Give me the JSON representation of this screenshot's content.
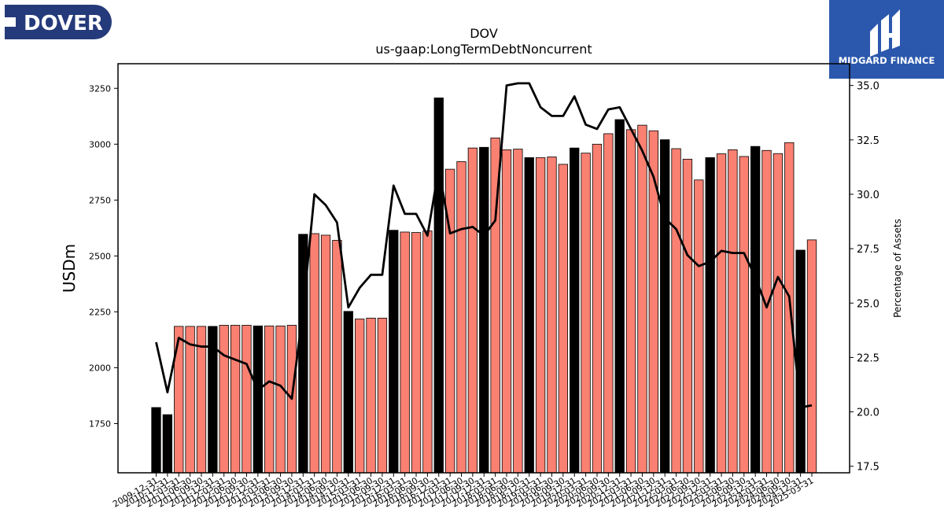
{
  "brand": {
    "left_logo_text": "DOVER",
    "right_logo_text": "MIDGARD FINANCE",
    "left_logo_color": "#253a7a",
    "right_logo_color": "#2b58ad"
  },
  "chart_data": {
    "type": "bar",
    "title": "DOV",
    "subtitle": "us-gaap:LongTermDebtNoncurrent",
    "ylabel": "USDm",
    "y2label": "Percentage of Assets",
    "ylim": [
      1530,
      3360
    ],
    "y2lim": [
      17.2,
      36.0
    ],
    "yticks": [
      1750,
      2000,
      2250,
      2500,
      2750,
      3000,
      3250
    ],
    "y2ticks": [
      17.5,
      20.0,
      22.5,
      25.0,
      27.5,
      30.0,
      32.5,
      35.0
    ],
    "y2tick_labels": [
      "17.5",
      "20.0",
      "22.5",
      "25.0",
      "27.5",
      "30.0",
      "32.5",
      "35.0"
    ],
    "colors": {
      "annual_bar": "#000000",
      "quarterly_bar": "#fa8072",
      "line": "#000000"
    },
    "categories": [
      "2009-12-31",
      "2010-12-31",
      "2011-03-31",
      "2011-06-30",
      "2011-09-30",
      "2011-12-31",
      "2012-03-31",
      "2012-06-30",
      "2012-09-30",
      "2012-12-31",
      "2013-03-31",
      "2013-06-30",
      "2013-09-30",
      "2013-12-31",
      "2014-03-31",
      "2014-06-30",
      "2014-09-30",
      "2014-12-31",
      "2015-03-31",
      "2015-06-30",
      "2015-09-30",
      "2015-12-31",
      "2016-03-31",
      "2016-06-30",
      "2016-09-30",
      "2016-12-31",
      "2017-03-31",
      "2017-06-30",
      "2017-09-30",
      "2017-12-31",
      "2018-03-31",
      "2018-06-30",
      "2018-09-30",
      "2018-12-31",
      "2019-03-31",
      "2019-06-30",
      "2019-09-30",
      "2019-12-31",
      "2020-03-31",
      "2020-06-30",
      "2020-09-30",
      "2020-12-31",
      "2021-03-31",
      "2021-06-30",
      "2021-09-30",
      "2021-12-31",
      "2022-03-31",
      "2022-06-30",
      "2022-09-30",
      "2022-12-31",
      "2023-03-31",
      "2023-06-30",
      "2023-09-30",
      "2023-12-31",
      "2024-03-31",
      "2024-06-30",
      "2024-09-30",
      "2024-12-31",
      "2025-03-31"
    ],
    "annual": [
      true,
      true,
      false,
      false,
      false,
      true,
      false,
      false,
      false,
      true,
      false,
      false,
      false,
      true,
      false,
      false,
      false,
      true,
      false,
      false,
      false,
      true,
      false,
      false,
      false,
      true,
      false,
      false,
      false,
      true,
      false,
      false,
      false,
      true,
      false,
      false,
      false,
      true,
      false,
      false,
      false,
      true,
      false,
      false,
      false,
      true,
      false,
      false,
      false,
      true,
      false,
      false,
      false,
      true,
      false,
      false,
      false,
      true,
      false
    ],
    "values": [
      1822,
      1790,
      2185,
      2185,
      2185,
      2185,
      2190,
      2190,
      2190,
      2187,
      2187,
      2187,
      2190,
      2597,
      2600,
      2593,
      2570,
      2252,
      2218,
      2222,
      2222,
      2615,
      2607,
      2605,
      2612,
      3207,
      2888,
      2922,
      2983,
      2986,
      3028,
      2975,
      2978,
      2940,
      2940,
      2943,
      2910,
      2983,
      2960,
      3000,
      3047,
      3110,
      3065,
      3085,
      3060,
      3020,
      2980,
      2933,
      2840,
      2940,
      2957,
      2975,
      2945,
      2990,
      2972,
      2958,
      3007,
      2526,
      2572
    ],
    "pct_of_assets": [
      23.2,
      20.9,
      23.4,
      23.1,
      23.0,
      23.0,
      22.6,
      22.4,
      22.2,
      21.0,
      21.4,
      21.2,
      20.6,
      24.7,
      30.0,
      29.5,
      28.7,
      24.8,
      25.7,
      26.3,
      26.3,
      30.4,
      29.1,
      29.1,
      28.1,
      31.2,
      28.2,
      28.4,
      28.5,
      28.1,
      28.8,
      35.0,
      35.1,
      35.1,
      34.0,
      33.6,
      33.6,
      34.5,
      33.2,
      33.0,
      33.9,
      34.0,
      33.0,
      32.0,
      30.8,
      28.9,
      28.4,
      27.2,
      26.7,
      26.9,
      27.4,
      27.3,
      27.3,
      26.2,
      24.8,
      26.2,
      25.3,
      20.2,
      20.3
    ]
  }
}
